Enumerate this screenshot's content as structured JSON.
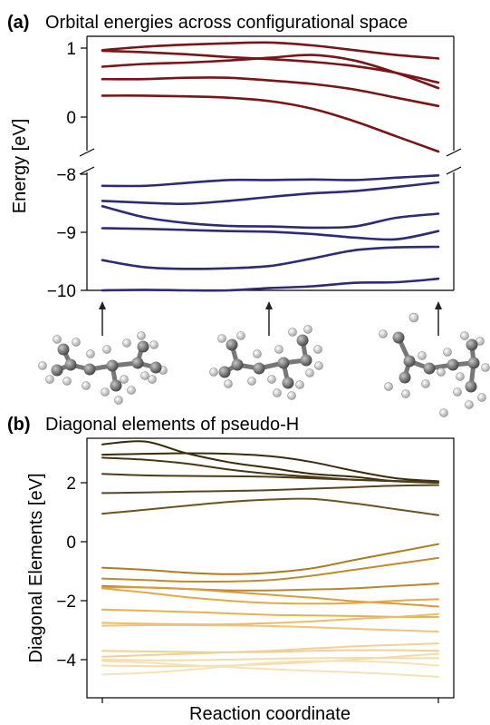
{
  "chart_data": [
    {
      "type": "line",
      "panel_label": "(a)",
      "title": "Orbital energies across configurational space",
      "xlabel": "",
      "ylabel": "Energy [eV]",
      "broken_axis": true,
      "upper_ylim": [
        -0.5,
        1.15
      ],
      "lower_ylim": [
        -10,
        -7.95
      ],
      "yticks_upper": [
        "1",
        "0"
      ],
      "yticks_lower": [
        "−8",
        "−9",
        "−10"
      ],
      "x": [
        0,
        0.125,
        0.25,
        0.375,
        0.5,
        0.625,
        0.75,
        0.875,
        1
      ],
      "colors": {
        "upper": "#7a1416",
        "lower": "#2d2a78"
      },
      "series_upper": [
        {
          "values": [
            0.97,
            1.02,
            1.05,
            1.07,
            1.08,
            1.04,
            0.97,
            0.9,
            0.85
          ]
        },
        {
          "values": [
            0.96,
            0.94,
            0.91,
            0.87,
            0.84,
            0.8,
            0.74,
            0.64,
            0.5
          ]
        },
        {
          "values": [
            0.73,
            0.77,
            0.79,
            0.82,
            0.86,
            0.9,
            0.82,
            0.64,
            0.42
          ]
        },
        {
          "values": [
            0.55,
            0.55,
            0.57,
            0.57,
            0.53,
            0.48,
            0.4,
            0.28,
            0.16
          ]
        },
        {
          "values": [
            0.31,
            0.31,
            0.3,
            0.28,
            0.23,
            0.12,
            -0.06,
            -0.28,
            -0.5
          ]
        }
      ],
      "series_lower": [
        {
          "values": [
            -8.2,
            -8.2,
            -8.15,
            -8.1,
            -8.1,
            -8.09,
            -8.1,
            -8.06,
            -8.02
          ]
        },
        {
          "values": [
            -8.46,
            -8.49,
            -8.51,
            -8.46,
            -8.39,
            -8.33,
            -8.29,
            -8.22,
            -8.14
          ]
        },
        {
          "values": [
            -8.55,
            -8.74,
            -8.84,
            -8.89,
            -8.9,
            -8.92,
            -8.9,
            -8.75,
            -8.68
          ]
        },
        {
          "values": [
            -8.93,
            -8.94,
            -8.96,
            -8.98,
            -8.99,
            -9.03,
            -9.09,
            -9.12,
            -8.98
          ]
        },
        {
          "values": [
            -9.48,
            -9.6,
            -9.63,
            -9.62,
            -9.58,
            -9.45,
            -9.31,
            -9.26,
            -9.25
          ]
        },
        {
          "values": [
            -10.0,
            -9.99,
            -10.0,
            -10.0,
            -9.96,
            -9.93,
            -9.87,
            -9.86,
            -9.8
          ]
        }
      ]
    },
    {
      "type": "line",
      "panel_label": "(b)",
      "title": "Diagonal elements of pseudo-H",
      "xlabel": "Reaction coordinate",
      "ylabel": "Diagonal Elements [eV]",
      "ylim": [
        -5.2,
        3.5
      ],
      "yticks": [
        "2",
        "0",
        "−2",
        "−4"
      ],
      "x": [
        0,
        0.125,
        0.25,
        0.375,
        0.5,
        0.625,
        0.75,
        0.875,
        1
      ],
      "series": [
        {
          "color": "#3a2c0a",
          "values": [
            3.3,
            3.4,
            3.0,
            2.7,
            2.5,
            2.3,
            2.2,
            2.05,
            2.0
          ]
        },
        {
          "color": "#3a2c0a",
          "values": [
            2.95,
            2.98,
            3.0,
            2.98,
            2.9,
            2.7,
            2.4,
            2.15,
            2.05
          ]
        },
        {
          "color": "#483612",
          "values": [
            2.85,
            2.78,
            2.65,
            2.45,
            2.3,
            2.2,
            2.1,
            2.06,
            2.04
          ]
        },
        {
          "color": "#4e3c18",
          "values": [
            2.3,
            2.25,
            2.23,
            2.22,
            2.2,
            2.15,
            2.1,
            2.05,
            2.0
          ]
        },
        {
          "color": "#5a4520",
          "values": [
            1.65,
            1.67,
            1.7,
            1.72,
            1.75,
            1.8,
            1.85,
            1.9,
            1.92
          ]
        },
        {
          "color": "#6e5220",
          "values": [
            0.95,
            1.08,
            1.22,
            1.35,
            1.43,
            1.45,
            1.3,
            1.1,
            0.9
          ]
        },
        {
          "color": "#b07a22",
          "values": [
            -0.88,
            -0.95,
            -1.05,
            -1.1,
            -1.05,
            -0.9,
            -0.62,
            -0.35,
            -0.08
          ]
        },
        {
          "color": "#c38a2c",
          "values": [
            -1.25,
            -1.3,
            -1.35,
            -1.35,
            -1.3,
            -1.15,
            -0.95,
            -0.75,
            -0.55
          ]
        },
        {
          "color": "#b8862e",
          "values": [
            -1.5,
            -1.55,
            -1.6,
            -1.65,
            -1.65,
            -1.62,
            -1.58,
            -1.5,
            -1.42
          ]
        },
        {
          "color": "#d89a3a",
          "values": [
            -1.55,
            -1.55,
            -1.6,
            -1.7,
            -1.8,
            -1.9,
            -2.02,
            -2.1,
            -2.2
          ]
        },
        {
          "color": "#e4a844",
          "values": [
            -1.58,
            -1.72,
            -1.88,
            -2.0,
            -2.08,
            -2.1,
            -2.08,
            -2.0,
            -1.95
          ]
        },
        {
          "color": "#e8b04e",
          "values": [
            -2.3,
            -2.34,
            -2.38,
            -2.43,
            -2.48,
            -2.5,
            -2.52,
            -2.55,
            -2.55
          ]
        },
        {
          "color": "#ecbc68",
          "values": [
            -2.75,
            -2.78,
            -2.8,
            -2.8,
            -2.76,
            -2.7,
            -2.62,
            -2.55,
            -2.45
          ]
        },
        {
          "color": "#efc478",
          "values": [
            -2.85,
            -2.83,
            -2.83,
            -2.84,
            -2.86,
            -2.9,
            -2.95,
            -3.0,
            -3.05
          ]
        },
        {
          "color": "#f0d098",
          "values": [
            -3.7,
            -3.72,
            -3.74,
            -3.75,
            -3.74,
            -3.7,
            -3.68,
            -3.68,
            -3.7
          ]
        },
        {
          "color": "#f0d098",
          "values": [
            -3.9,
            -3.85,
            -3.8,
            -3.75,
            -3.7,
            -3.62,
            -3.55,
            -3.5,
            -3.45
          ]
        },
        {
          "color": "#f3dcaa",
          "values": [
            -4.0,
            -4.02,
            -4.02,
            -4.0,
            -3.97,
            -3.95,
            -3.94,
            -3.95,
            -3.95
          ]
        },
        {
          "color": "#f3dcaa",
          "values": [
            -4.2,
            -4.22,
            -4.22,
            -4.2,
            -4.15,
            -4.08,
            -4.0,
            -3.9,
            -3.8
          ]
        },
        {
          "color": "#f5e2b6",
          "values": [
            -4.5,
            -4.45,
            -4.35,
            -4.22,
            -4.1,
            -4.05,
            -4.05,
            -4.1,
            -4.2
          ]
        },
        {
          "color": "#f5e2b6",
          "values": [
            -4.05,
            -4.1,
            -4.18,
            -4.25,
            -4.32,
            -4.38,
            -4.43,
            -4.5,
            -4.58
          ]
        }
      ]
    }
  ],
  "molecules": [
    "molecule-start",
    "molecule-middle",
    "molecule-end"
  ]
}
